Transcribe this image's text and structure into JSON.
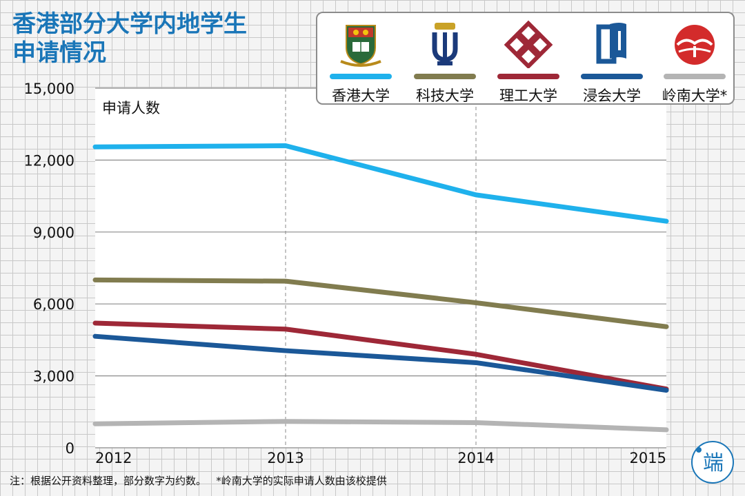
{
  "title_lines": [
    "香港部分大学内地学生",
    "申请情况"
  ],
  "footnote": "注：根据公开资料整理，部分数字为约数。   *岭南大学的实际申请人数由该校提供",
  "brand_mark_text": "端",
  "chart_data": {
    "type": "line",
    "title": "香港部分大学内地学生申请情况",
    "ylabel": "申请人数",
    "xlabel": "",
    "x": [
      "2012",
      "2013",
      "2014",
      "2015"
    ],
    "ylim": [
      0,
      15000
    ],
    "yticks": [
      "0",
      "3,000",
      "6,000",
      "9,000",
      "12,000",
      "15,000"
    ],
    "ytick_values": [
      0,
      3000,
      6000,
      9000,
      12000,
      15000
    ],
    "grid": true,
    "legend_position": "top-right",
    "series": [
      {
        "name": "香港大学",
        "color": "#1fb1ec",
        "logo": "hku-crest-icon",
        "values": [
          12550,
          12600,
          10550,
          9450
        ]
      },
      {
        "name": "科技大学",
        "color": "#817c4f",
        "logo": "hkust-torch-icon",
        "values": [
          7000,
          6950,
          6050,
          5050
        ]
      },
      {
        "name": "理工大学",
        "color": "#9e2837",
        "logo": "polyu-knot-icon",
        "values": [
          5200,
          4950,
          3900,
          2450
        ]
      },
      {
        "name": "浸会大学",
        "color": "#1b5898",
        "logo": "hkbu-book-icon",
        "values": [
          4650,
          4050,
          3550,
          2400
        ]
      },
      {
        "name": "岭南大学*",
        "color": "#b4b4b4",
        "logo": "lingnan-emblem-icon",
        "values": [
          1000,
          1100,
          1050,
          750
        ]
      }
    ]
  }
}
